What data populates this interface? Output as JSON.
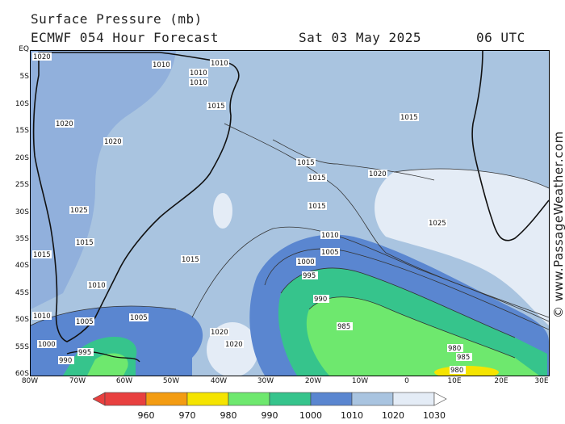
{
  "header": {
    "title": "Surface Pressure (mb)",
    "model": "ECMWF 054 Hour Forecast",
    "date": "Sat 03 May 2025",
    "time": "06 UTC"
  },
  "latitude_labels": [
    "EQ",
    "5S",
    "10S",
    "15S",
    "20S",
    "25S",
    "30S",
    "35S",
    "40S",
    "45S",
    "50S",
    "55S",
    "60S"
  ],
  "longitude_labels": [
    "80W",
    "70W",
    "60W",
    "50W",
    "40W",
    "30W",
    "20W",
    "10W",
    "0",
    "10E",
    "20E",
    "30E"
  ],
  "isobar_labels": {
    "north": [
      "1010",
      "1010",
      "1010",
      "1010",
      "1015",
      "1015",
      "1015",
      "1015",
      "1015"
    ],
    "south": [
      "1010",
      "1005",
      "1000",
      "995",
      "990",
      "985",
      "980",
      "985",
      "980",
      "1020",
      "1020",
      "1025",
      "1020"
    ],
    "west": [
      "1020",
      "1015",
      "1020",
      "1025",
      "1020",
      "1015",
      "1015",
      "1010",
      "1005",
      "1000",
      "995",
      "990",
      "1005",
      "1010"
    ]
  },
  "legend": {
    "labels": [
      "960",
      "970",
      "980",
      "990",
      "1000",
      "1010",
      "1020",
      "1030"
    ],
    "colors": [
      "#e8403f",
      "#f39c12",
      "#f5e400",
      "#6ee86e",
      "#36c48c",
      "#5a86d0",
      "#a9c4e0",
      "#e4ecf6"
    ]
  },
  "watermark": "© www.PassageWeather.com"
}
